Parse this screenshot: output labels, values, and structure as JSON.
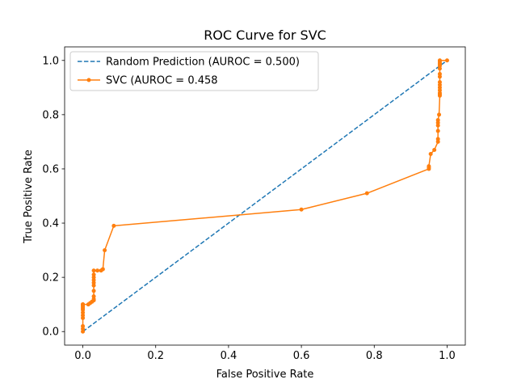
{
  "chart_data": {
    "type": "line",
    "title": "ROC Curve for SVC",
    "xlabel": "False Positive Rate",
    "ylabel": "True Positive Rate",
    "xlim": [
      -0.05,
      1.05
    ],
    "ylim": [
      -0.05,
      1.05
    ],
    "xticks": [
      0.0,
      0.2,
      0.4,
      0.6,
      0.8,
      1.0
    ],
    "yticks": [
      0.0,
      0.2,
      0.4,
      0.6,
      0.8,
      1.0
    ],
    "xtick_labels": [
      "0.0",
      "0.2",
      "0.4",
      "0.6",
      "0.8",
      "1.0"
    ],
    "ytick_labels": [
      "0.0",
      "0.2",
      "0.4",
      "0.6",
      "0.8",
      "1.0"
    ],
    "grid": false,
    "legend_position": "upper-left",
    "series": [
      {
        "name": "Random Prediction (AUROC = 0.500)",
        "style": "dashed",
        "markers": false,
        "color": "#1f77b4",
        "x": [
          0,
          1
        ],
        "y": [
          0,
          1
        ]
      },
      {
        "name": "SVC (AUROC = 0.458",
        "style": "solid",
        "markers": true,
        "color": "#ff7f0e",
        "x": [
          0.0,
          0.0,
          0.0,
          0.0,
          0.0,
          0.0,
          0.0,
          0.0,
          0.0,
          0.0,
          0.0,
          0.0,
          0.0,
          0.0,
          0.015,
          0.02,
          0.025,
          0.03,
          0.03,
          0.03,
          0.03,
          0.03,
          0.03,
          0.03,
          0.03,
          0.03,
          0.03,
          0.04,
          0.05,
          0.055,
          0.06,
          0.085,
          0.6,
          0.78,
          0.95,
          0.95,
          0.95,
          0.955,
          0.965,
          0.975,
          0.975,
          0.975,
          0.975,
          0.975,
          0.975,
          0.978,
          0.98,
          0.98,
          0.98,
          0.98,
          0.98,
          0.98,
          0.98,
          0.98,
          0.98,
          0.98,
          0.98,
          0.98,
          0.98,
          0.98,
          0.98,
          1.0
        ],
        "y": [
          0.0,
          0.01,
          0.02,
          0.05,
          0.06,
          0.07,
          0.08,
          0.085,
          0.09,
          0.095,
          0.1,
          0.1,
          0.1,
          0.1,
          0.1,
          0.105,
          0.11,
          0.115,
          0.12,
          0.13,
          0.15,
          0.17,
          0.18,
          0.19,
          0.2,
          0.21,
          0.225,
          0.225,
          0.225,
          0.23,
          0.3,
          0.39,
          0.45,
          0.51,
          0.6,
          0.605,
          0.61,
          0.655,
          0.67,
          0.7,
          0.71,
          0.74,
          0.76,
          0.77,
          0.78,
          0.8,
          0.87,
          0.875,
          0.88,
          0.89,
          0.9,
          0.91,
          0.92,
          0.94,
          0.95,
          0.97,
          0.98,
          0.985,
          0.99,
          0.995,
          1.0,
          1.0
        ]
      }
    ]
  }
}
